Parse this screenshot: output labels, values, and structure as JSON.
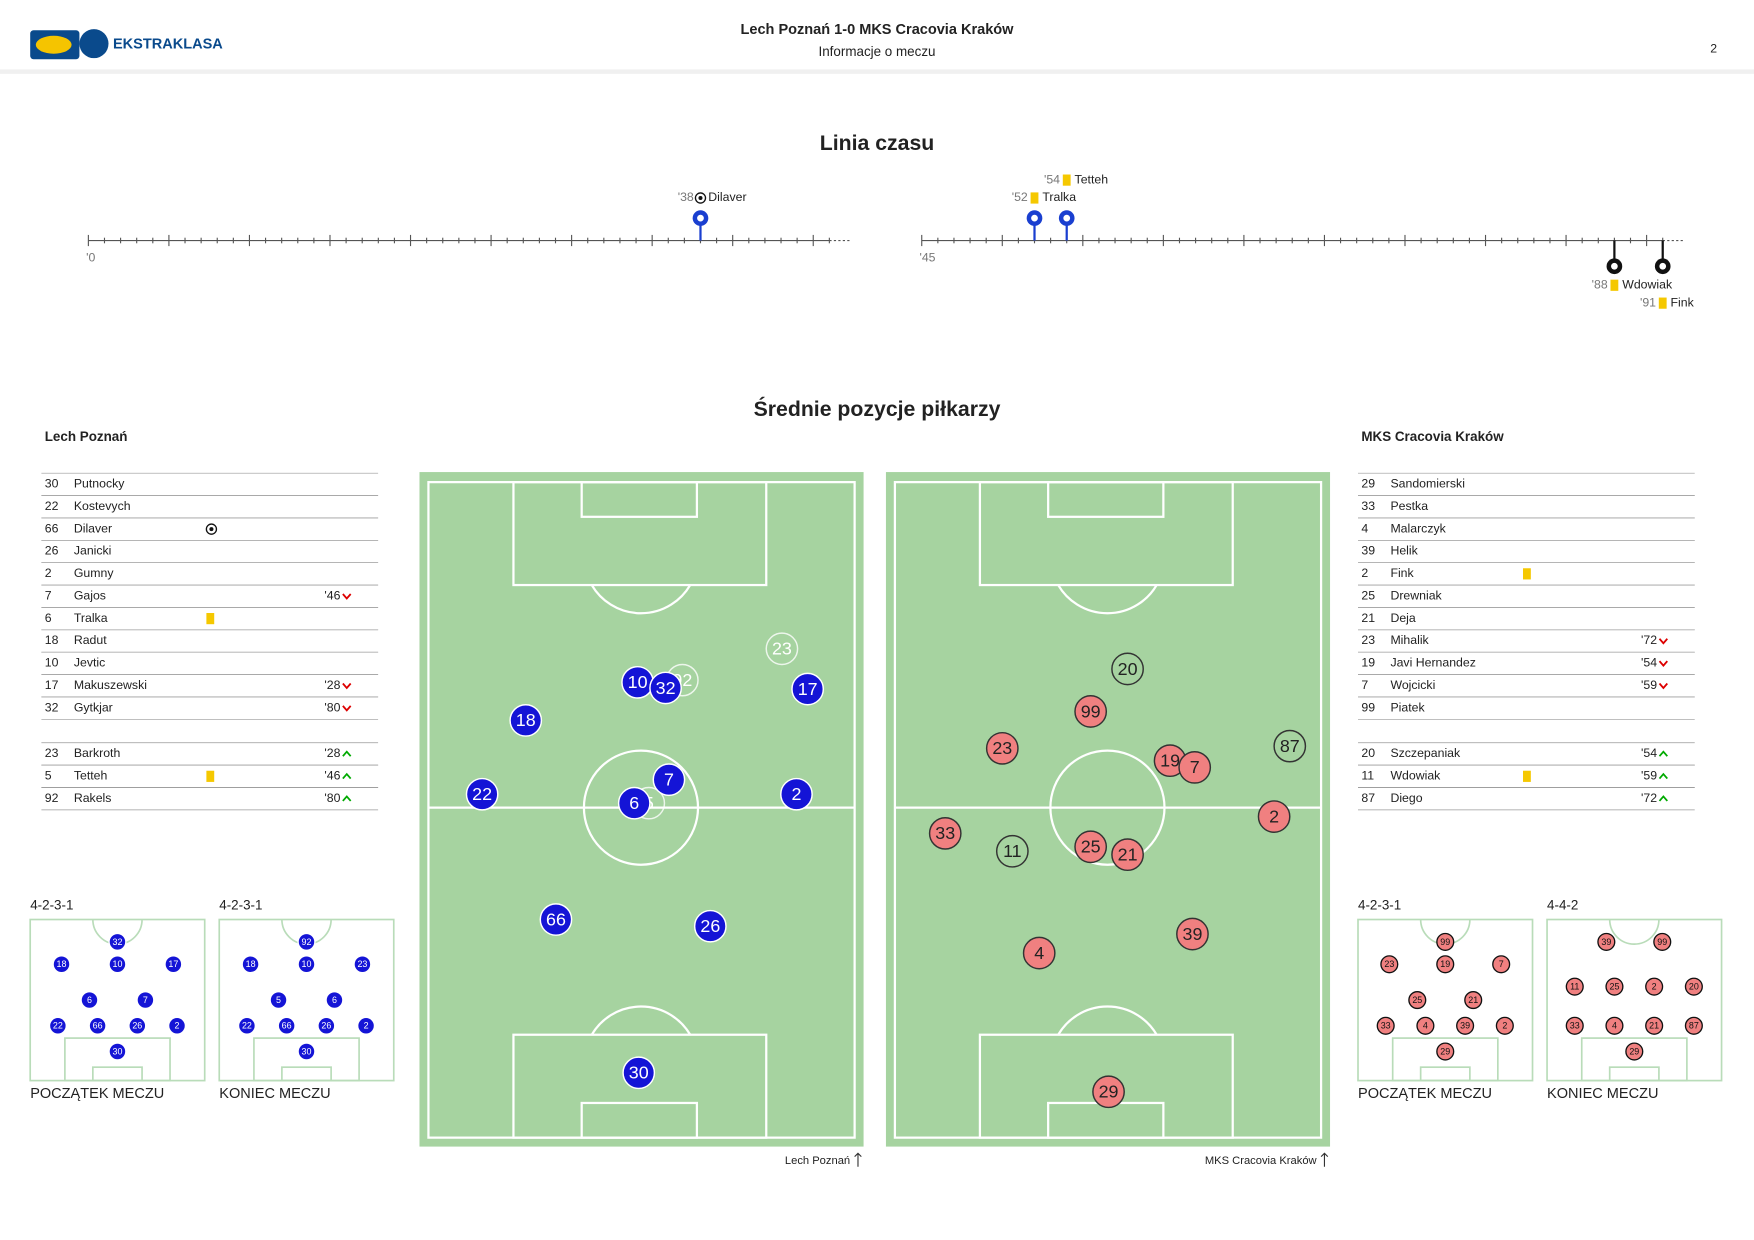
{
  "header": {
    "logo_text": "EKSTRAKLASA",
    "title": "Lech Poznań 1-0 MKS Cracovia Kraków",
    "subtitle": "Informacje o meczu",
    "page": "2"
  },
  "timeline": {
    "title": "Linia czasu",
    "halves": [
      {
        "start_label": "'0"
      },
      {
        "start_label": "'45"
      }
    ],
    "events": [
      {
        "minute": "'38",
        "player": "Dilaver",
        "kind": "goal",
        "team": "home"
      },
      {
        "minute": "'52",
        "player": "Tralka",
        "kind": "yellow",
        "team": "home"
      },
      {
        "minute": "'54",
        "player": "Tetteh",
        "kind": "yellow",
        "team": "home"
      },
      {
        "minute": "'88",
        "player": "Wdowiak",
        "kind": "yellow",
        "team": "away"
      },
      {
        "minute": "'91",
        "player": "Fink",
        "kind": "yellow",
        "team": "away"
      }
    ]
  },
  "positions": {
    "title": "Średnie pozycje piłkarzy",
    "teams": [
      {
        "name": "Lech Poznań",
        "color": "#1414d6",
        "players": [
          {
            "number": "30",
            "name": "Putnocky"
          },
          {
            "number": "22",
            "name": "Kostevych"
          },
          {
            "number": "66",
            "name": "Dilaver",
            "goal": true
          },
          {
            "number": "26",
            "name": "Janicki"
          },
          {
            "number": "2",
            "name": "Gumny"
          },
          {
            "number": "7",
            "name": "Gajos",
            "sub_minute": "'46",
            "sub": "out"
          },
          {
            "number": "6",
            "name": "Tralka",
            "card": "yellow"
          },
          {
            "number": "18",
            "name": "Radut"
          },
          {
            "number": "10",
            "name": "Jevtic"
          },
          {
            "number": "17",
            "name": "Makuszewski",
            "sub_minute": "'28",
            "sub": "out"
          },
          {
            "number": "32",
            "name": "Gytkjar",
            "sub_minute": "'80",
            "sub": "out"
          }
        ],
        "subs": [
          {
            "number": "23",
            "name": "Barkroth",
            "sub_minute": "'28",
            "sub": "in"
          },
          {
            "number": "5",
            "name": "Tetteh",
            "card": "yellow",
            "sub_minute": "'46",
            "sub": "in"
          },
          {
            "number": "92",
            "name": "Rakels",
            "sub_minute": "'80",
            "sub": "in"
          }
        ],
        "formations": [
          {
            "label": "4-2-3-1",
            "caption": "POCZĄTEK MECZU",
            "rows": [
              [
                "32"
              ],
              [
                "18",
                "10",
                "17"
              ],
              [
                "6",
                "7"
              ],
              [
                "22",
                "66",
                "26",
                "2"
              ],
              [
                "30"
              ]
            ]
          },
          {
            "label": "4-2-3-1",
            "caption": "KONIEC MECZU",
            "rows": [
              [
                "92"
              ],
              [
                "18",
                "10",
                "23"
              ],
              [
                "5",
                "6"
              ],
              [
                "22",
                "66",
                "26",
                "2"
              ],
              [
                "30"
              ]
            ]
          }
        ]
      },
      {
        "name": "MKS Cracovia Kraków",
        "color": "#f08080",
        "players": [
          {
            "number": "29",
            "name": "Sandomierski"
          },
          {
            "number": "33",
            "name": "Pestka"
          },
          {
            "number": "4",
            "name": "Malarczyk"
          },
          {
            "number": "39",
            "name": "Helik"
          },
          {
            "number": "2",
            "name": "Fink",
            "card": "yellow"
          },
          {
            "number": "25",
            "name": "Drewniak"
          },
          {
            "number": "21",
            "name": "Deja"
          },
          {
            "number": "23",
            "name": "Mihalik",
            "sub_minute": "'72",
            "sub": "out"
          },
          {
            "number": "19",
            "name": "Javi Hernandez",
            "sub_minute": "'54",
            "sub": "out"
          },
          {
            "number": "7",
            "name": "Wojcicki",
            "sub_minute": "'59",
            "sub": "out"
          },
          {
            "number": "99",
            "name": "Piatek"
          }
        ],
        "subs": [
          {
            "number": "20",
            "name": "Szczepaniak",
            "sub_minute": "'54",
            "sub": "in"
          },
          {
            "number": "11",
            "name": "Wdowiak",
            "card": "yellow",
            "sub_minute": "'59",
            "sub": "in"
          },
          {
            "number": "87",
            "name": "Diego",
            "sub_minute": "'72",
            "sub": "in"
          }
        ],
        "formations": [
          {
            "label": "4-2-3-1",
            "caption": "POCZĄTEK MECZU",
            "rows": [
              [
                "99"
              ],
              [
                "23",
                "19",
                "7"
              ],
              [
                "25",
                "21"
              ],
              [
                "33",
                "4",
                "39",
                "2"
              ],
              [
                "29"
              ]
            ]
          },
          {
            "label": "4-4-2",
            "caption": "KONIEC MECZU",
            "rows": [
              [
                "39",
                "99"
              ],
              [
                "11",
                "25",
                "2",
                "20"
              ],
              [
                "33",
                "4",
                "21",
                "87"
              ],
              [
                "29"
              ]
            ]
          }
        ]
      }
    ]
  }
}
